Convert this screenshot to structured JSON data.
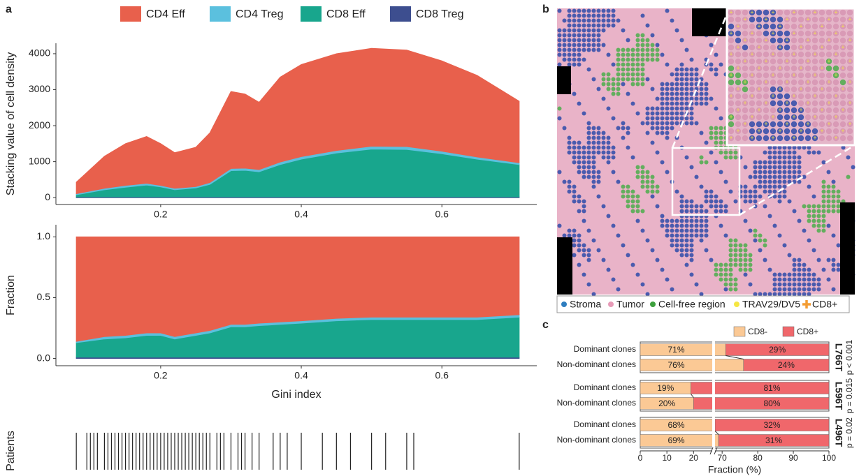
{
  "panel_labels": [
    "a",
    "b",
    "c"
  ],
  "spatial_map": {
    "legend": [
      "Stroma",
      "Tumor",
      "Cell-free region",
      "TRAV29/DV5",
      "CD8+"
    ]
  },
  "chart_data": [
    {
      "type": "area",
      "stacked": true,
      "ylabel": "Stacking value of cell density",
      "x": [
        0.08,
        0.12,
        0.15,
        0.18,
        0.2,
        0.22,
        0.25,
        0.27,
        0.3,
        0.32,
        0.34,
        0.37,
        0.4,
        0.45,
        0.5,
        0.55,
        0.6,
        0.65,
        0.71
      ],
      "series": [
        {
          "name": "CD4 Eff",
          "color": "#E8604C",
          "values": [
            320,
            890,
            1160,
            1300,
            1160,
            990,
            1090,
            1380,
            2140,
            2060,
            1870,
            2360,
            2560,
            2690,
            2720,
            2680,
            2510,
            2270,
            1710
          ]
        },
        {
          "name": "CD4 Treg",
          "color": "#5BC0DE",
          "values": [
            30,
            40,
            50,
            50,
            40,
            40,
            40,
            50,
            60,
            60,
            60,
            70,
            70,
            70,
            80,
            80,
            70,
            60,
            50
          ]
        },
        {
          "name": "CD8 Eff",
          "color": "#18A68D",
          "values": [
            60,
            200,
            270,
            330,
            280,
            200,
            250,
            350,
            730,
            740,
            700,
            900,
            1050,
            1220,
            1330,
            1320,
            1200,
            1050,
            900
          ]
        },
        {
          "name": "CD8 Treg",
          "color": "#3D4E8F",
          "values": [
            20,
            20,
            20,
            20,
            20,
            20,
            20,
            20,
            20,
            20,
            20,
            20,
            20,
            20,
            20,
            20,
            20,
            20,
            20
          ]
        }
      ],
      "xlim": [
        0.051,
        0.735
      ],
      "ylim": [
        -190,
        4290
      ],
      "xticks": [
        0.2,
        0.4,
        0.6
      ],
      "yticks": [
        0,
        1000,
        2000,
        3000,
        4000
      ]
    },
    {
      "type": "area",
      "stacked": true,
      "ylabel": "Fraction",
      "xlabel": "Gini index",
      "x": [
        0.08,
        0.12,
        0.15,
        0.18,
        0.2,
        0.22,
        0.25,
        0.27,
        0.3,
        0.32,
        0.34,
        0.37,
        0.4,
        0.45,
        0.5,
        0.55,
        0.6,
        0.65,
        0.71
      ],
      "series": [
        {
          "name": "CD4 Eff",
          "color": "#E8604C",
          "values": [
            0.86,
            0.82,
            0.81,
            0.79,
            0.79,
            0.82,
            0.79,
            0.77,
            0.72,
            0.72,
            0.71,
            0.7,
            0.69,
            0.67,
            0.66,
            0.66,
            0.66,
            0.66,
            0.64
          ]
        },
        {
          "name": "CD4 Treg",
          "color": "#5BC0DE",
          "values": [
            0.01,
            0.02,
            0.02,
            0.02,
            0.02,
            0.02,
            0.02,
            0.02,
            0.02,
            0.02,
            0.02,
            0.02,
            0.02,
            0.02,
            0.02,
            0.02,
            0.02,
            0.02,
            0.02
          ]
        },
        {
          "name": "CD8 Eff",
          "color": "#18A68D",
          "values": [
            0.12,
            0.15,
            0.16,
            0.18,
            0.18,
            0.15,
            0.18,
            0.2,
            0.25,
            0.25,
            0.26,
            0.27,
            0.28,
            0.3,
            0.31,
            0.31,
            0.31,
            0.31,
            0.33
          ]
        },
        {
          "name": "CD8 Treg",
          "color": "#3D4E8F",
          "values": [
            0.01,
            0.01,
            0.01,
            0.01,
            0.01,
            0.01,
            0.01,
            0.01,
            0.01,
            0.01,
            0.01,
            0.01,
            0.01,
            0.01,
            0.01,
            0.01,
            0.01,
            0.01,
            0.01
          ]
        }
      ],
      "xlim": [
        0.051,
        0.735
      ],
      "ylim": [
        -0.06,
        1.1
      ],
      "xticks": [
        0.2,
        0.4,
        0.6
      ],
      "yticks": [
        {
          "value": 0,
          "label": "0.0"
        },
        0.5,
        {
          "value": 1,
          "label": "1.0"
        }
      ]
    },
    {
      "type": "rug",
      "ylabel": "Patients",
      "color": "#222222",
      "xlim": [
        0.051,
        0.735
      ],
      "x": [
        0.08,
        0.095,
        0.1,
        0.105,
        0.11,
        0.12,
        0.125,
        0.13,
        0.135,
        0.14,
        0.145,
        0.15,
        0.155,
        0.16,
        0.165,
        0.17,
        0.175,
        0.18,
        0.185,
        0.19,
        0.195,
        0.2,
        0.205,
        0.21,
        0.215,
        0.22,
        0.225,
        0.23,
        0.235,
        0.24,
        0.245,
        0.25,
        0.255,
        0.26,
        0.265,
        0.27,
        0.28,
        0.285,
        0.29,
        0.3,
        0.31,
        0.315,
        0.32,
        0.33,
        0.34,
        0.36,
        0.37,
        0.38,
        0.4,
        0.43,
        0.45,
        0.47,
        0.5,
        0.52,
        0.55,
        0.56,
        0.71
      ]
    },
    {
      "type": "hbar",
      "stacked": true,
      "xlabel": "Fraction (%)",
      "categories": [
        "Dominant clones",
        "Non-dominant clones"
      ],
      "series": [
        {
          "name": "CD8-",
          "color": "#FBC995"
        },
        {
          "name": "CD8+",
          "color": "#F0676B"
        }
      ],
      "groups": [
        {
          "name": "L766T",
          "p_value": "p < 0.001",
          "values": [
            [
              71,
              76
            ],
            [
              29,
              24
            ]
          ],
          "value_labels": [
            [
              "71%",
              "76%"
            ],
            [
              "29%",
              "24%"
            ]
          ]
        },
        {
          "name": "L596T",
          "p_value": "p = 0.015",
          "values": [
            [
              19,
              20
            ],
            [
              81,
              80
            ]
          ],
          "value_labels": [
            [
              "19%",
              "20%"
            ],
            [
              "81%",
              "80%"
            ]
          ]
        },
        {
          "name": "L496T",
          "p_value": "p = 0.02",
          "values": [
            [
              68,
              69
            ],
            [
              32,
              31
            ]
          ],
          "value_labels": [
            [
              "68%",
              "69%"
            ],
            [
              "32%",
              "31%"
            ]
          ]
        }
      ],
      "xlim": [
        0,
        100
      ],
      "xbreak": [
        27,
        68
      ],
      "xticks": [
        0,
        10,
        20,
        70,
        80,
        90,
        100
      ]
    }
  ]
}
